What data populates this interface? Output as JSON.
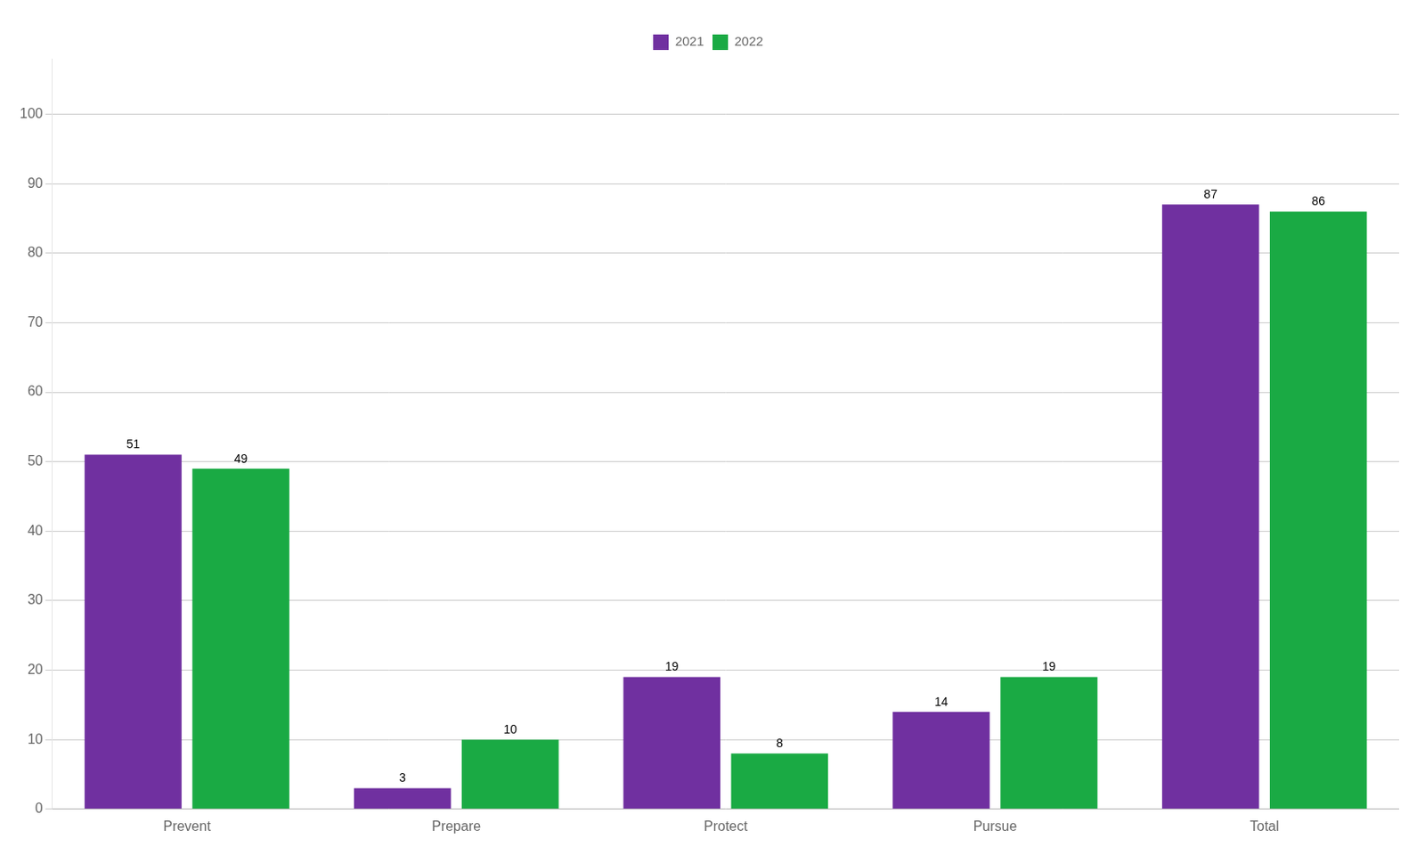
{
  "chart_data": {
    "type": "bar",
    "categories": [
      "Prevent",
      "Prepare",
      "Protect",
      "Pursue",
      "Total"
    ],
    "series": [
      {
        "name": "2021",
        "color": "#7030A0",
        "values": [
          51,
          3,
          19,
          14,
          87
        ]
      },
      {
        "name": "2022",
        "color": "#1AAA44",
        "values": [
          49,
          10,
          8,
          19,
          86
        ]
      }
    ],
    "ylim": [
      0,
      108
    ],
    "yticks": [
      0,
      10,
      20,
      30,
      40,
      50,
      60,
      70,
      80,
      90,
      100
    ],
    "grid": true,
    "legend": "top",
    "data_labels": true
  }
}
